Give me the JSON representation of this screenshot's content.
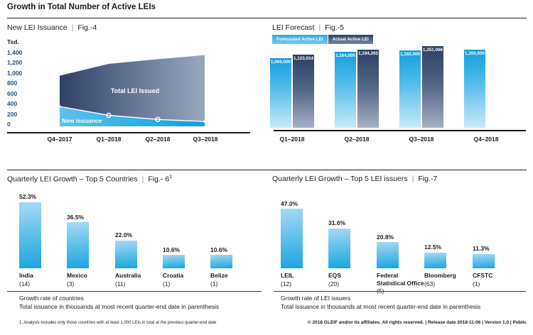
{
  "page": {
    "title": "Growth in Total Number of Active LEIs",
    "footnote": "1. Analysis includes only those countries with at least 1,000 LEIs in total at the previous quarter-end date",
    "footer": "© 2018 GLEIF and/or its affiliates. All rights reserved.  |  Release date 2018-11-06  |  Version 1.0  |  Public"
  },
  "colors": {
    "accent_cyan": "#1ea4e0",
    "slate_blue": "#2e4166",
    "axis_text_navy": "#1f4e79",
    "text": "#1a1a1a"
  },
  "chart_data": [
    {
      "id": "fig4",
      "type": "area",
      "title": "New LEI Issuance",
      "fig_label": "Fig.-4",
      "unit_label": "Tsd.",
      "x": [
        "Q4–2017",
        "Q1–2018",
        "Q2–2018",
        "Q3–2018"
      ],
      "series": [
        {
          "name": "Total LEI Issued",
          "values": [
            950,
            1180,
            1270,
            1350
          ]
        },
        {
          "name": "New issuance",
          "values": [
            350,
            180,
            100,
            60
          ]
        }
      ],
      "ylim": [
        0,
        1400
      ],
      "y_tick_values": [
        1400,
        1200,
        1000,
        800,
        600,
        400,
        200,
        0
      ],
      "y_tick_labels": [
        "1,400",
        "1,200",
        "1,000",
        "800",
        "600",
        "400",
        "200",
        "0"
      ]
    },
    {
      "id": "fig5",
      "type": "bar",
      "title": "LEI Forecast",
      "fig_label": "Fig.-5",
      "categories": [
        "Q1–2018",
        "Q2–2018",
        "Q3–2018",
        "Q4–2018"
      ],
      "series": [
        {
          "name": "Forecasted Active LEI",
          "values": [
            1069000,
            1164000,
            1182000,
            1200000
          ],
          "labels": [
            "1,069,000",
            "1,164,000",
            "1,182,000",
            "1,200,000"
          ]
        },
        {
          "name": "Actual Active LEI",
          "values": [
            1123014,
            1194265,
            1251066,
            null
          ],
          "labels": [
            "1,123,014",
            "1,194,265",
            "1,251,066",
            null
          ]
        }
      ],
      "ylim": [
        0,
        1251066
      ],
      "legend_position": "top-left"
    },
    {
      "id": "fig6",
      "type": "bar",
      "title": "Quarterly LEI Growth – Top 5 Countries",
      "fig_label": "Fig.- 6",
      "fig_sup": "1",
      "categories": [
        "India",
        "Mexico",
        "Australia",
        "Croatia",
        "Belize"
      ],
      "display_lines": [
        [
          "India"
        ],
        [
          "Mexico"
        ],
        [
          "Australia"
        ],
        [
          "Croatia"
        ],
        [
          "Belize"
        ]
      ],
      "counts": [
        "(14)",
        "(3)",
        "(11)",
        "(1)",
        "(1)"
      ],
      "values": [
        52.3,
        36.5,
        22.0,
        10.6,
        10.6
      ],
      "labels": [
        "52.3%",
        "36.5%",
        "22.0%",
        "10.6%",
        "10.6%"
      ],
      "captions": [
        "Growth rate of countries",
        "Total issuance in thousands at most recent quarter-end date in parenthesis"
      ]
    },
    {
      "id": "fig7",
      "type": "bar",
      "title": "Quarterly LEI Growth – Top 5 LEI issuers",
      "fig_label": "Fig.-7",
      "categories": [
        "LEIL",
        "EQS",
        "Federal Statistical Office",
        "Bloomberg",
        "CFSTC"
      ],
      "display_lines": [
        [
          "LEIL"
        ],
        [
          "EQS"
        ],
        [
          "Federal",
          "Statistical Office"
        ],
        [
          "Bloomberg"
        ],
        [
          "CFSTC"
        ]
      ],
      "counts": [
        "(12)",
        "(20)",
        "(5)",
        "(63)",
        "(1)"
      ],
      "values": [
        47.0,
        31.6,
        20.8,
        12.5,
        11.3
      ],
      "labels": [
        "47.0%",
        "31.6%",
        "20.8%",
        "12.5%",
        "11.3%"
      ],
      "captions": [
        "Growth rate of LEI issuers",
        "Total issuance in thousands at most recent quarter-end date in parenthesis"
      ]
    }
  ]
}
